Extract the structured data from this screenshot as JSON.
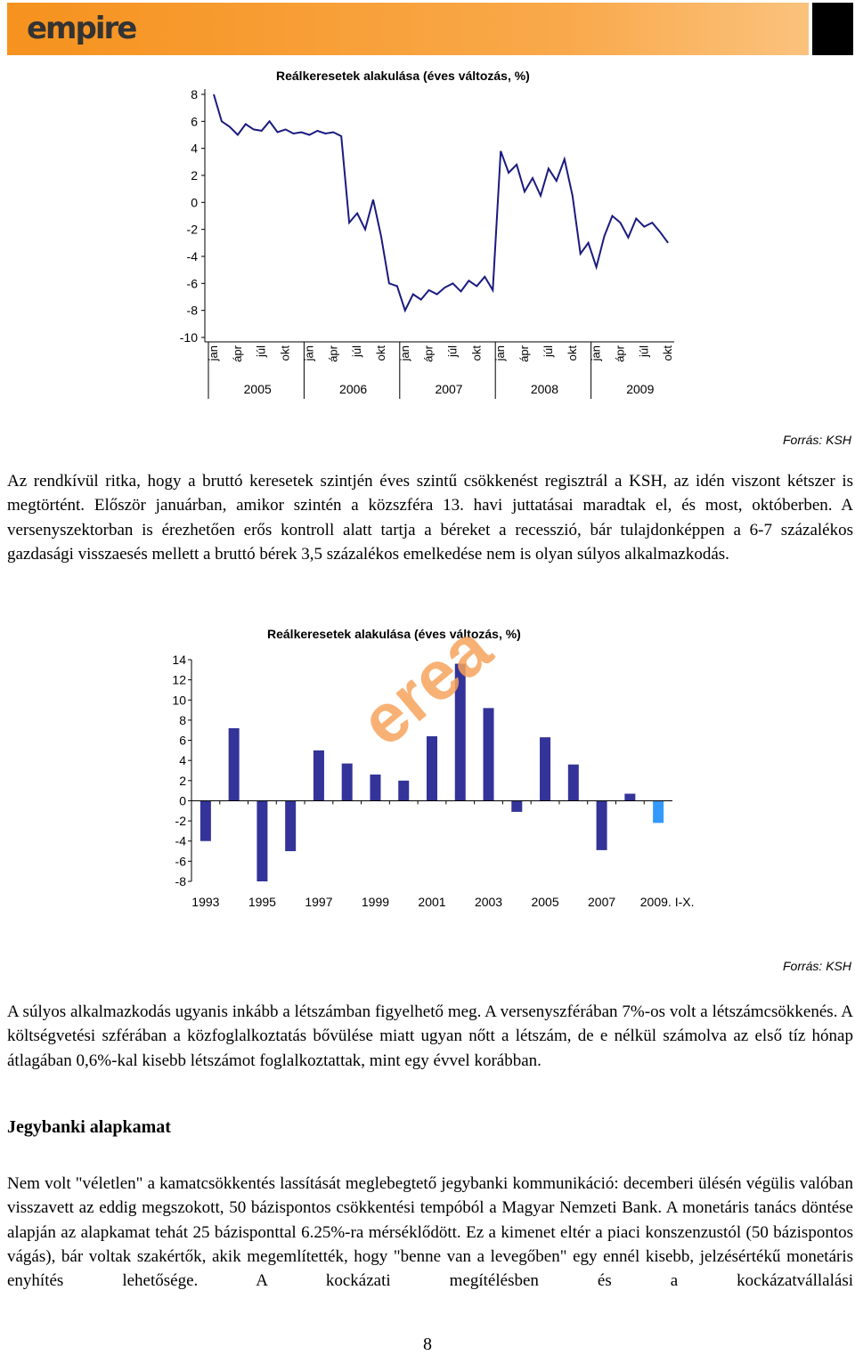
{
  "header": {
    "logo": "empire"
  },
  "chart_data": [
    {
      "type": "line",
      "title": "Reálkeresetek alakulása (éves változás, %)",
      "categories": [
        "jan",
        null,
        null,
        "ápr",
        null,
        null,
        "júl",
        null,
        null,
        "okt",
        null,
        null,
        "jan",
        null,
        null,
        "ápr",
        null,
        null,
        "júl",
        null,
        null,
        "okt",
        null,
        null,
        "jan",
        null,
        null,
        "ápr",
        null,
        null,
        "júl",
        null,
        null,
        "okt",
        null,
        null,
        "jan",
        null,
        null,
        "ápr",
        null,
        null,
        "júl",
        null,
        null,
        "okt",
        null,
        null,
        "jan",
        null,
        null,
        "ápr",
        null,
        null,
        "júl",
        null,
        null,
        "okt"
      ],
      "year_labels": [
        "2005",
        "2006",
        "2007",
        "2008",
        "2009"
      ],
      "values": [
        8,
        6.0,
        5.6,
        5.0,
        5.8,
        5.4,
        5.3,
        6.0,
        5.2,
        5.4,
        5.1,
        5.2,
        5.0,
        5.3,
        5.1,
        5.2,
        4.9,
        -1.5,
        -0.8,
        -2.0,
        0.2,
        -2.5,
        -6.0,
        -6.2,
        -8.0,
        -6.8,
        -7.2,
        -6.5,
        -6.8,
        -6.3,
        -6.0,
        -6.6,
        -5.8,
        -6.2,
        -5.5,
        -6.5,
        3.8,
        2.2,
        2.8,
        0.8,
        1.8,
        0.5,
        2.5,
        1.6,
        3.2,
        0.5,
        -3.8,
        -3.0,
        -4.8,
        -2.5,
        -1.0,
        -1.5,
        -2.6,
        -1.2,
        -1.8,
        -1.5,
        -2.2,
        -3.0
      ],
      "color": "#1a1a80",
      "ylim": [
        -10,
        8
      ],
      "yticks": [
        -10,
        -8,
        -6,
        -4,
        -2,
        0,
        2,
        4,
        6,
        8
      ],
      "source": "Forrás: KSH"
    },
    {
      "type": "bar",
      "title": "Reálkeresetek alakulása (éves változás, %)",
      "categories": [
        "1993",
        null,
        "1995",
        null,
        "1997",
        null,
        "1999",
        null,
        "2001",
        null,
        "2003",
        null,
        "2005",
        null,
        "2007",
        null,
        "2009. I-X."
      ],
      "values": [
        -4.0,
        7.2,
        -8.0,
        -5.0,
        5.0,
        3.7,
        2.6,
        2.0,
        6.4,
        13.6,
        9.2,
        -1.1,
        6.3,
        3.6,
        -4.9,
        0.7,
        -2.2
      ],
      "colors": [
        "#333399",
        "#333399",
        "#333399",
        "#333399",
        "#333399",
        "#333399",
        "#333399",
        "#333399",
        "#333399",
        "#333399",
        "#333399",
        "#333399",
        "#333399",
        "#333399",
        "#333399",
        "#333399",
        "#3399ff"
      ],
      "ylim": [
        -8,
        14
      ],
      "yticks": [
        -8,
        -6,
        -4,
        -2,
        0,
        2,
        4,
        6,
        8,
        10,
        12,
        14
      ],
      "watermark": "erea",
      "source": "Forrás: KSH"
    }
  ],
  "paragraphs": [
    "Az rendkívül ritka, hogy a bruttó keresetek szintjén éves szintű csökkenést regisztrál a KSH, az idén viszont kétszer is megtörtént. Először januárban, amikor szintén a közszféra 13. havi juttatásai maradtak el, és most, októberben. A versenyszektorban is érezhetően erős kontroll alatt tartja a béreket a recesszió, bár tulajdonképpen a 6-7 százalékos gazdasági visszaesés mellett a bruttó bérek 3,5 százalékos emelkedése nem is olyan súlyos alkalmazkodás.",
    "A súlyos alkalmazkodás ugyanis inkább a létszámban figyelhető meg. A versenyszférában 7%-os volt a létszámcsökkenés. A költségvetési szférában a közfoglalkoztatás bővülése miatt ugyan nőtt a létszám, de e nélkül számolva az első tíz hónap átlagában 0,6%-kal kisebb létszámot foglalkoztattak, mint egy évvel korábban.",
    "Nem volt \"véletlen\" a kamatcsökkentés lassítását meglebegtető jegybanki kommunikáció: decemberi ülésén végülis valóban visszavett az eddig megszokott, 50 bázispontos csökkentési tempóból a Magyar Nemzeti Bank. A monetáris tanács döntése alapján az alapkamat tehát 25 bázisponttal 6.25%-ra mérséklődött. Ez a kimenet eltér a piaci konszenzustól (50 bázispontos vágás), bár voltak szakértők, akik megemlítették, hogy \"benne van a levegőben\" egy ennél kisebb, jelzésértékű monetáris enyhítés lehetősége. A kockázati megítélésben és a kockázatvállalási"
  ],
  "heading": "Jegybanki alapkamat",
  "page_number": "8"
}
